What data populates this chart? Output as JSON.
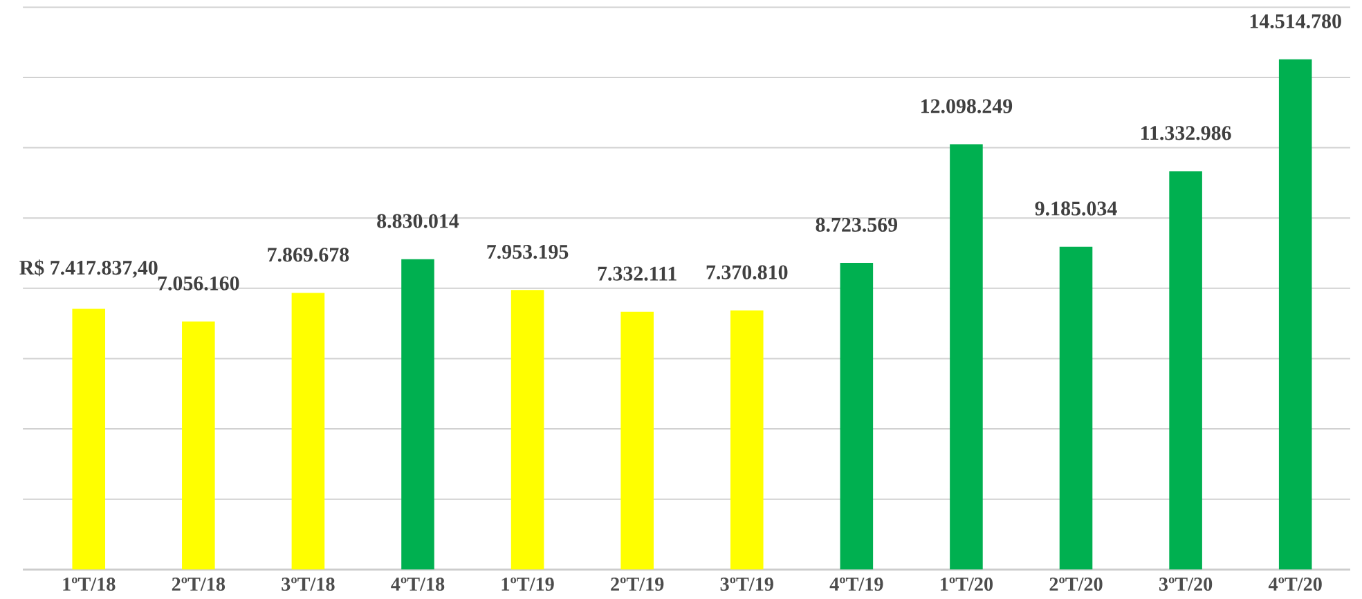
{
  "chart_data": {
    "type": "bar",
    "categories": [
      "1ºT/18",
      "2ºT/18",
      "3ºT/18",
      "4ºT/18",
      "1ºT/19",
      "2ºT/19",
      "3ºT/19",
      "4ºT/19",
      "1ºT/20",
      "2ºT/20",
      "3ºT/20",
      "4ºT/20"
    ],
    "values": [
      7417837.4,
      7056160,
      7869678,
      8830014,
      7953195,
      7332111,
      7370810,
      8723569,
      12098249,
      9185034,
      11332986,
      14514780
    ],
    "colors": [
      "#ffff00",
      "#ffff00",
      "#ffff00",
      "#00b050",
      "#ffff00",
      "#ffff00",
      "#ffff00",
      "#00b050",
      "#00b050",
      "#00b050",
      "#00b050",
      "#00b050"
    ],
    "value_labels": [
      "R$ 7.417.837,40",
      "7.056.160",
      "7.869.678",
      "8.830.014",
      "7.953.195",
      "7.332.111",
      "7.370.810",
      "8.723.569",
      "12.098.249",
      "9.185.034",
      "11.332.986",
      "14.514.780"
    ],
    "ylim": [
      0,
      16000000
    ],
    "yticks": [
      {
        "value": 0,
        "label": null
      },
      {
        "value": 2000000,
        "label": null
      },
      {
        "value": 4000000,
        "label": null
      },
      {
        "value": 6000000,
        "label": null
      },
      {
        "value": 8000000,
        "label": null
      },
      {
        "value": 10000000,
        "label": null
      },
      {
        "value": 12000000,
        "label": null
      },
      {
        "value": 14000000,
        "label": null
      },
      {
        "value": 16000000,
        "label": null
      }
    ],
    "grid": "y",
    "tick_labels": "x"
  }
}
